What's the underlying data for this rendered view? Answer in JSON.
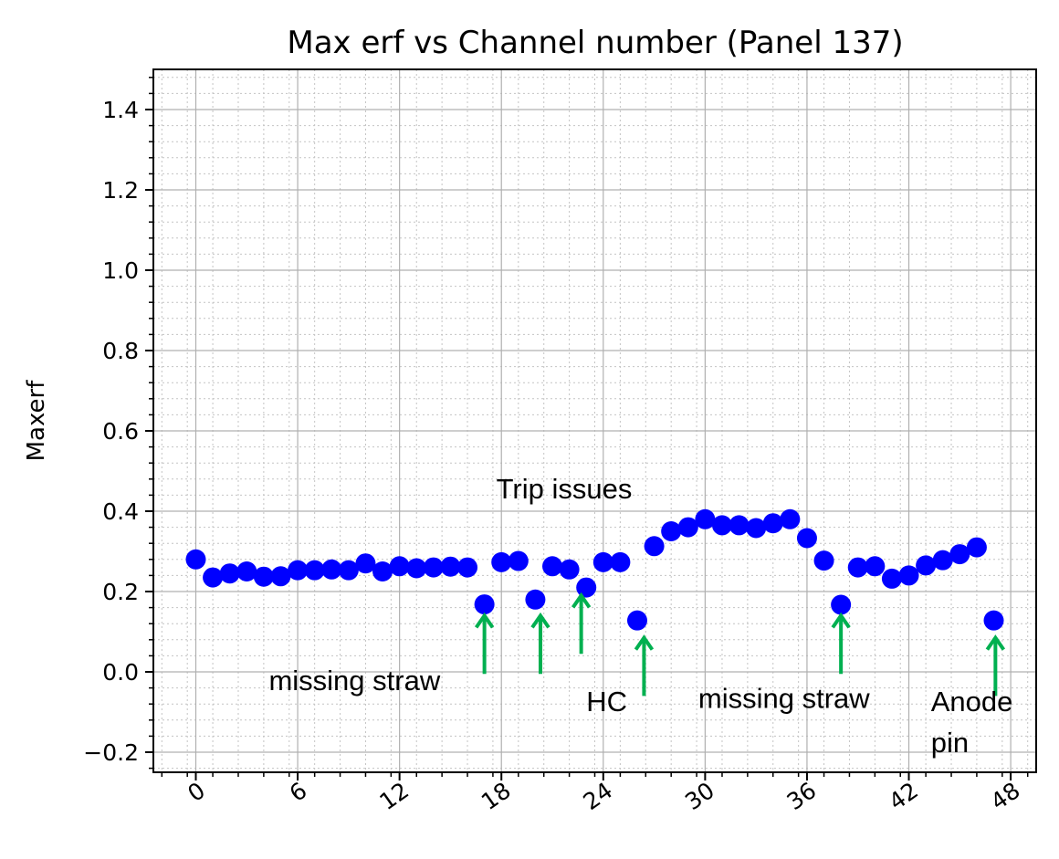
{
  "chart_data": {
    "type": "scatter",
    "title": "Max erf vs Channel number (Panel 137)",
    "xlabel": "",
    "ylabel": "Maxerf",
    "xlim": [
      -2.5,
      49.5
    ],
    "ylim": [
      -0.25,
      1.5
    ],
    "xticks": [
      0,
      6,
      12,
      18,
      24,
      30,
      36,
      42,
      48
    ],
    "yticks": [
      -0.2,
      0.0,
      0.2,
      0.4,
      0.6,
      0.8,
      1.0,
      1.2,
      1.4
    ],
    "grid": true,
    "minor_grid": true,
    "marker_color": "#0000ff",
    "arrow_color": "#00b050",
    "x": [
      0,
      1,
      2,
      3,
      4,
      5,
      6,
      7,
      8,
      9,
      10,
      11,
      12,
      13,
      14,
      15,
      16,
      17,
      18,
      19,
      20,
      21,
      22,
      23,
      24,
      25,
      26,
      27,
      28,
      29,
      30,
      31,
      32,
      33,
      34,
      35,
      36,
      37,
      38,
      39,
      40,
      41,
      42,
      43,
      44,
      45,
      46,
      47
    ],
    "y": [
      0.28,
      0.235,
      0.245,
      0.25,
      0.237,
      0.238,
      0.253,
      0.253,
      0.255,
      0.253,
      0.27,
      0.25,
      0.263,
      0.258,
      0.26,
      0.262,
      0.26,
      0.168,
      0.273,
      0.276,
      0.18,
      0.263,
      0.255,
      0.21,
      0.273,
      0.273,
      0.128,
      0.313,
      0.35,
      0.36,
      0.38,
      0.365,
      0.365,
      0.358,
      0.37,
      0.38,
      0.333,
      0.277,
      0.167,
      0.26,
      0.263,
      0.232,
      0.24,
      0.265,
      0.278,
      0.293,
      0.31,
      0.128
    ],
    "annotations": [
      {
        "text": "missing straw",
        "x": 4.3,
        "y": -0.045
      },
      {
        "text": "Trip issues",
        "x": 17.7,
        "y": 0.432
      },
      {
        "text": "HC",
        "x": 23.0,
        "y": -0.098
      },
      {
        "text": "missing straw",
        "x": 29.6,
        "y": -0.09
      },
      {
        "text": "Anode",
        "x": 43.3,
        "y": -0.098
      },
      {
        "text": "pin",
        "x": 43.3,
        "y": -0.2
      }
    ],
    "arrows": [
      {
        "x": 17.0,
        "y_from": -0.005,
        "y_to": 0.14
      },
      {
        "x": 20.3,
        "y_from": -0.005,
        "y_to": 0.14
      },
      {
        "x": 22.7,
        "y_from": 0.045,
        "y_to": 0.19
      },
      {
        "x": 26.4,
        "y_from": -0.06,
        "y_to": 0.085
      },
      {
        "x": 38.0,
        "y_from": -0.005,
        "y_to": 0.14
      },
      {
        "x": 47.1,
        "y_from": -0.06,
        "y_to": 0.085
      }
    ]
  }
}
